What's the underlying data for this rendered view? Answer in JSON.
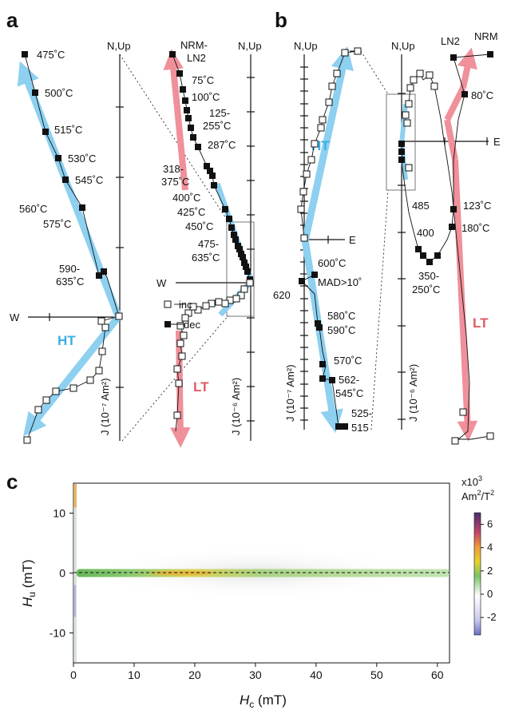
{
  "panels": {
    "a": "a",
    "b": "b",
    "c": "c"
  },
  "common": {
    "n_up": "N,Up",
    "w": "W",
    "e": "E",
    "ht": "HT",
    "lt": "LT",
    "inc": "inc",
    "dec": "dec"
  },
  "a_left": {
    "ylabel": "J (10⁻⁷ Am²)",
    "steps": [
      "475˚C",
      "500˚C",
      "515˚C",
      "530˚C",
      "545˚C",
      "560˚C",
      "575˚C",
      "590-",
      "635˚C"
    ]
  },
  "a_right": {
    "ylabel": "J (10⁻⁶ Am²)",
    "steps": [
      "NRM-",
      "LN2",
      "75˚C",
      "100˚C",
      "125-",
      "255˚C",
      "287˚C",
      "318-",
      "375˚C",
      "400˚C",
      "425˚C",
      "450˚C",
      "475-",
      "635˚C"
    ]
  },
  "b_left": {
    "ylabel": "J (10⁻⁷ Am²)",
    "steps": [
      "600˚C",
      "MAD>10˚",
      "620",
      "580˚C",
      "590˚C",
      "570˚C",
      "562-",
      "545˚C",
      "525-",
      "515"
    ]
  },
  "b_right": {
    "ylabel": "J (10⁻⁶ Am²)",
    "steps": [
      "LN2",
      "NRM",
      "80˚C",
      "485",
      "400",
      "350-",
      "250˚C",
      "123˚C",
      "180˚C"
    ]
  },
  "chart_data": {
    "type": "heatmap",
    "xlabel": "Hc (mT)",
    "ylabel": "Hu (mT)",
    "xlim": [
      0,
      62
    ],
    "ylim": [
      -15,
      15
    ],
    "xticks": [
      0,
      10,
      20,
      30,
      40,
      50,
      60
    ],
    "yticks": [
      10,
      0,
      -10
    ],
    "colorbar": {
      "title_line1": "x10",
      "title_exp": "3",
      "title_line2": "Am",
      "title_line2_exp": "2",
      "title_line2_tail": "/T",
      "title_line2_exp2": "2",
      "range": [
        -3.5,
        7
      ],
      "ticks": [
        6,
        4,
        2,
        0,
        -2
      ],
      "colors": [
        "#6b6fc2",
        "#ffffff",
        "#3e9c3a",
        "#f1c21b",
        "#e17a3f",
        "#a0306a",
        "#4a2f6f"
      ]
    },
    "zero_line": "dashed at Hu = 0",
    "ridge": {
      "hc_start": 0.5,
      "hc_peak": 18,
      "hc_end": 62,
      "hu": 0
    }
  }
}
